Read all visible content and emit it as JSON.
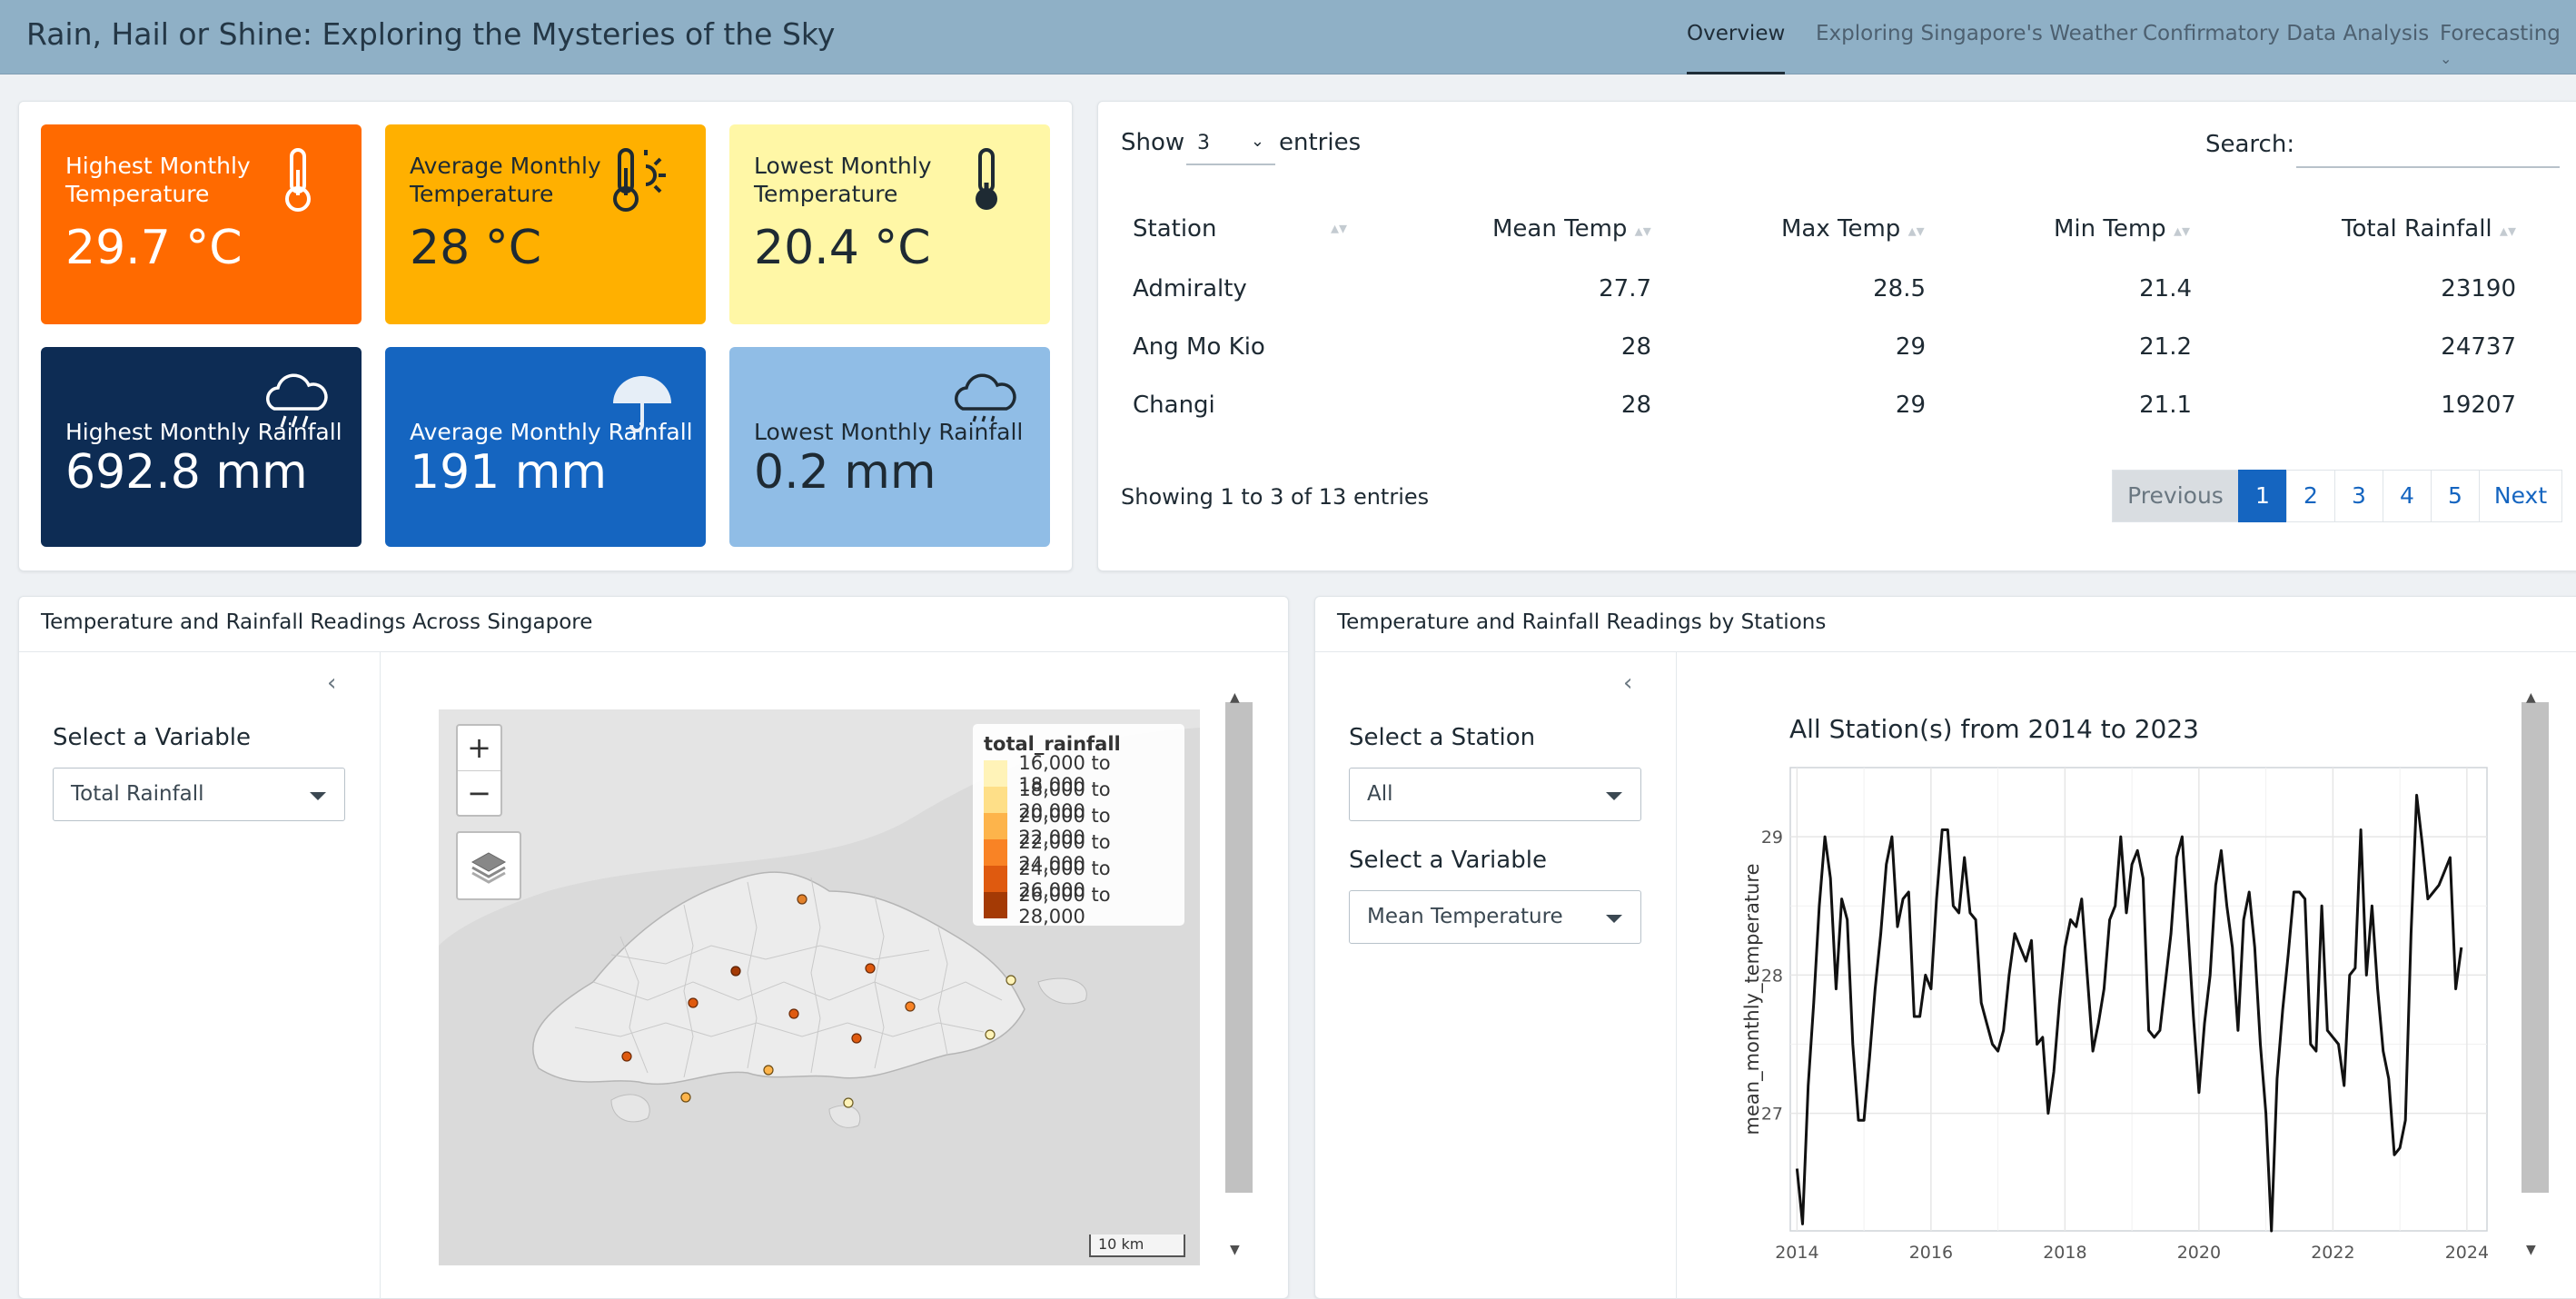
{
  "app": {
    "title": "Rain, Hail or Shine: Exploring the Mysteries of the Sky",
    "tabs": [
      "Overview",
      "Exploring Singapore's Weather",
      "Confirmatory Data Analysis",
      "Forecasting"
    ],
    "active_tab": "Overview"
  },
  "value_boxes": [
    {
      "title": "Highest Monthly Temperature",
      "value": "29.7 °C",
      "icon": "thermometer-icon",
      "bg": "#ff6a00",
      "fg": "#ffffff"
    },
    {
      "title": "Average Monthly Temperature",
      "value": "28 °C",
      "icon": "thermometer-sun-icon",
      "bg": "#ffb000",
      "fg": "#1e2a33"
    },
    {
      "title": "Lowest Monthly Temperature",
      "value": "20.4 °C",
      "icon": "thermometer-low-icon",
      "bg": "#fff7a6",
      "fg": "#1e2a33"
    },
    {
      "title": "Highest Monthly Rainfall",
      "value": "692.8 mm",
      "icon": "cloud-rain-icon",
      "bg": "#0d2c54",
      "fg": "#ffffff"
    },
    {
      "title": "Average Monthly Rainfall",
      "value": "191 mm",
      "icon": "umbrella-icon",
      "bg": "#1565c0",
      "fg": "#ffffff"
    },
    {
      "title": "Lowest Monthly Rainfall",
      "value": "0.2 mm",
      "icon": "cloud-drizzle-icon",
      "bg": "#90bde6",
      "fg": "#1e2a33"
    }
  ],
  "table": {
    "show_label": "Show",
    "entries_value": "3",
    "entries_label": "entries",
    "search_label": "Search:",
    "columns": [
      "Station",
      "Mean Temp",
      "Max Temp",
      "Min Temp",
      "Total Rainfall"
    ],
    "rows": [
      [
        "Admiralty",
        "27.7",
        "28.5",
        "21.4",
        "23190"
      ],
      [
        "Ang Mo Kio",
        "28",
        "29",
        "21.2",
        "24737"
      ],
      [
        "Changi",
        "28",
        "29",
        "21.1",
        "19207"
      ]
    ],
    "info": "Showing 1 to 3 of 13 entries",
    "pagination": [
      "Previous",
      "1",
      "2",
      "3",
      "4",
      "5",
      "Next"
    ],
    "active_page": "1"
  },
  "map_panel": {
    "header": "Temperature and Rainfall Readings Across Singapore",
    "variable_label": "Select a Variable",
    "variable_value": "Total Rainfall",
    "legend_title": "total_rainfall",
    "legend_items": [
      {
        "label": "16,000 to 18,000",
        "color": "#fff3b8"
      },
      {
        "label": "18,000 to 20,000",
        "color": "#fedf88"
      },
      {
        "label": "20,000 to 22,000",
        "color": "#fdb44b"
      },
      {
        "label": "22,000 to 24,000",
        "color": "#f98325"
      },
      {
        "label": "24,000 to 26,000",
        "color": "#df5a0f"
      },
      {
        "label": "26,000 to 28,000",
        "color": "#a43a05"
      }
    ],
    "zoom_in": "+",
    "zoom_out": "−",
    "scale_label": "10 km"
  },
  "chart_panel": {
    "header": "Temperature and Rainfall Readings by Stations",
    "station_label": "Select a Station",
    "station_value": "All",
    "variable_label": "Select a Variable",
    "variable_value": "Mean Temperature"
  },
  "chart_data": {
    "type": "line",
    "title": "All Station(s) from 2014 to 2023",
    "xlabel": "",
    "ylabel": "mean_monthly_temperature",
    "xlim": [
      2013.9,
      2024.3
    ],
    "ylim": [
      26.15,
      29.5
    ],
    "xticks": [
      2014,
      2016,
      2018,
      2020,
      2022,
      2024
    ],
    "yticks": [
      27,
      28,
      29
    ],
    "x": [
      2014.0,
      2014.083,
      2014.167,
      2014.25,
      2014.333,
      2014.417,
      2014.5,
      2014.583,
      2014.667,
      2014.75,
      2014.833,
      2014.917,
      2015.0,
      2015.083,
      2015.167,
      2015.25,
      2015.333,
      2015.417,
      2015.5,
      2015.583,
      2015.667,
      2015.75,
      2015.833,
      2015.917,
      2016.0,
      2016.083,
      2016.167,
      2016.25,
      2016.333,
      2016.417,
      2016.5,
      2016.583,
      2016.667,
      2016.75,
      2016.833,
      2016.917,
      2017.0,
      2017.083,
      2017.167,
      2017.25,
      2017.333,
      2017.417,
      2017.5,
      2017.583,
      2017.667,
      2017.75,
      2017.833,
      2017.917,
      2018.0,
      2018.083,
      2018.167,
      2018.25,
      2018.333,
      2018.417,
      2018.5,
      2018.583,
      2018.667,
      2018.75,
      2018.833,
      2018.917,
      2019.0,
      2019.083,
      2019.167,
      2019.25,
      2019.333,
      2019.417,
      2019.5,
      2019.583,
      2019.667,
      2019.75,
      2019.833,
      2019.917,
      2020.0,
      2020.083,
      2020.167,
      2020.25,
      2020.333,
      2020.417,
      2020.5,
      2020.583,
      2020.667,
      2020.75,
      2020.833,
      2020.917,
      2021.0,
      2021.083,
      2021.167,
      2021.25,
      2021.333,
      2021.417,
      2021.5,
      2021.583,
      2021.667,
      2021.75,
      2021.833,
      2021.917,
      2022.0,
      2022.083,
      2022.167,
      2022.25,
      2022.333,
      2022.417,
      2022.5,
      2022.583,
      2022.667,
      2022.75,
      2022.833,
      2022.917,
      2023.0,
      2023.083,
      2023.167,
      2023.25,
      2023.333,
      2023.417,
      2023.5,
      2023.583,
      2023.667,
      2023.75,
      2023.833,
      2023.917
    ],
    "values": [
      26.6,
      26.2,
      27.2,
      27.8,
      28.5,
      29.0,
      28.7,
      27.9,
      28.55,
      28.4,
      27.5,
      26.95,
      26.95,
      27.4,
      27.9,
      28.3,
      28.8,
      29.0,
      28.35,
      28.55,
      28.6,
      27.7,
      27.7,
      28.0,
      27.9,
      28.55,
      29.05,
      29.05,
      28.5,
      28.45,
      28.85,
      28.45,
      28.4,
      27.8,
      27.65,
      27.5,
      27.45,
      27.6,
      28.0,
      28.3,
      28.2,
      28.1,
      28.25,
      27.5,
      27.55,
      27.0,
      27.3,
      27.8,
      28.2,
      28.4,
      28.35,
      28.55,
      28.0,
      27.45,
      27.65,
      27.9,
      28.4,
      28.5,
      29.0,
      28.45,
      28.8,
      28.9,
      28.7,
      27.6,
      27.55,
      27.6,
      27.95,
      28.3,
      28.85,
      29.0,
      28.35,
      27.7,
      27.15,
      27.65,
      28.0,
      28.65,
      28.9,
      28.5,
      28.2,
      27.6,
      28.4,
      28.6,
      28.2,
      27.5,
      27.0,
      26.15,
      27.25,
      27.75,
      28.15,
      28.6,
      28.6,
      28.55,
      27.5,
      27.45,
      28.5,
      27.6,
      27.55,
      27.5,
      27.2,
      28.0,
      28.05,
      29.05,
      28.0,
      28.5,
      27.9,
      27.45,
      27.25,
      26.7,
      26.75,
      26.95,
      28.3,
      29.3,
      28.95,
      28.55,
      28.6,
      28.65,
      28.75,
      28.85,
      27.9,
      28.2
    ]
  }
}
